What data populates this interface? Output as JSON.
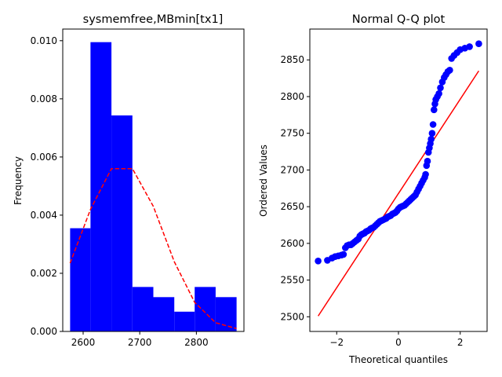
{
  "colors": {
    "bar": "#0000ff",
    "density_line": "#ff0000",
    "qq_points": "#0000ff",
    "qq_line": "#ff0000",
    "axes": "#000000"
  },
  "chart_data": [
    {
      "type": "bar",
      "subtype": "histogram",
      "title": "sysmemfree,MBmin[tx1]",
      "xlabel": "",
      "ylabel": "Frequency",
      "xlim": [
        2564,
        2884
      ],
      "ylim": [
        0,
        0.0104
      ],
      "xticks": [
        2600,
        2700,
        2800
      ],
      "yticks": [
        0.0,
        0.002,
        0.004,
        0.006,
        0.008,
        0.01
      ],
      "ytick_labels": [
        "0.000",
        "0.002",
        "0.004",
        "0.006",
        "0.008",
        "0.010"
      ],
      "grid": false,
      "bins": [
        {
          "x0": 2577,
          "x1": 2613,
          "value": 0.00355
        },
        {
          "x0": 2613,
          "x1": 2650,
          "value": 0.00995
        },
        {
          "x0": 2650,
          "x1": 2687,
          "value": 0.00743
        },
        {
          "x0": 2687,
          "x1": 2724,
          "value": 0.00153
        },
        {
          "x0": 2724,
          "x1": 2761,
          "value": 0.00118
        },
        {
          "x0": 2761,
          "x1": 2797,
          "value": 0.00068
        },
        {
          "x0": 2797,
          "x1": 2834,
          "value": 0.00153
        },
        {
          "x0": 2834,
          "x1": 2871,
          "value": 0.00118
        }
      ],
      "density_curve": {
        "style": "dashed",
        "x": [
          2577,
          2613,
          2650,
          2687,
          2724,
          2761,
          2797,
          2834,
          2871
        ],
        "y": [
          0.00235,
          0.0042,
          0.0056,
          0.0056,
          0.0043,
          0.0024,
          0.001,
          0.0003,
          0.0001
        ]
      }
    },
    {
      "type": "scatter",
      "title": "Normal Q-Q plot",
      "xlabel": "Theoretical quantiles",
      "ylabel": "Ordered Values",
      "xlim": [
        -2.87,
        2.87
      ],
      "ylim": [
        2480,
        2892
      ],
      "xticks": [
        -2,
        0,
        2
      ],
      "xtick_labels": [
        "−2",
        "0",
        "2"
      ],
      "yticks": [
        2500,
        2550,
        2600,
        2650,
        2700,
        2750,
        2800,
        2850
      ],
      "grid": false,
      "points": {
        "x": [
          -2.6,
          -2.3,
          -2.15,
          -2.05,
          -1.95,
          -1.85,
          -1.78,
          -1.72,
          -1.66,
          -1.6,
          -1.54,
          -1.48,
          -1.42,
          -1.36,
          -1.3,
          -1.25,
          -1.2,
          -1.15,
          -1.1,
          -1.05,
          -1.0,
          -0.95,
          -0.9,
          -0.85,
          -0.8,
          -0.75,
          -0.7,
          -0.65,
          -0.6,
          -0.55,
          -0.5,
          -0.45,
          -0.4,
          -0.35,
          -0.3,
          -0.25,
          -0.2,
          -0.15,
          -0.1,
          -0.05,
          0.0,
          0.05,
          0.1,
          0.15,
          0.2,
          0.25,
          0.3,
          0.35,
          0.4,
          0.45,
          0.5,
          0.55,
          0.6,
          0.65,
          0.7,
          0.75,
          0.8,
          0.85,
          0.88,
          0.91,
          0.94,
          0.97,
          1.0,
          1.03,
          1.06,
          1.09,
          1.12,
          1.15,
          1.18,
          1.21,
          1.26,
          1.31,
          1.36,
          1.42,
          1.48,
          1.54,
          1.6,
          1.66,
          1.72,
          1.8,
          1.9,
          2.0,
          2.15,
          2.3,
          2.6
        ],
        "y": [
          2576,
          2577,
          2580,
          2582,
          2583,
          2584,
          2585,
          2594,
          2597,
          2598,
          2598,
          2600,
          2602,
          2604,
          2606,
          2610,
          2612,
          2613,
          2614,
          2616,
          2617,
          2618,
          2620,
          2621,
          2622,
          2624,
          2626,
          2628,
          2630,
          2631,
          2632,
          2633,
          2634,
          2636,
          2637,
          2638,
          2640,
          2641,
          2642,
          2644,
          2647,
          2649,
          2650,
          2651,
          2652,
          2654,
          2656,
          2658,
          2660,
          2662,
          2664,
          2666,
          2670,
          2674,
          2678,
          2682,
          2686,
          2690,
          2694,
          2706,
          2712,
          2724,
          2730,
          2736,
          2742,
          2750,
          2762,
          2782,
          2790,
          2796,
          2800,
          2804,
          2812,
          2820,
          2826,
          2830,
          2834,
          2836,
          2852,
          2856,
          2860,
          2864,
          2866,
          2868,
          2872
        ]
      },
      "reference_line": {
        "x": [
          -2.6,
          2.6
        ],
        "y": [
          2501,
          2835
        ]
      }
    }
  ]
}
